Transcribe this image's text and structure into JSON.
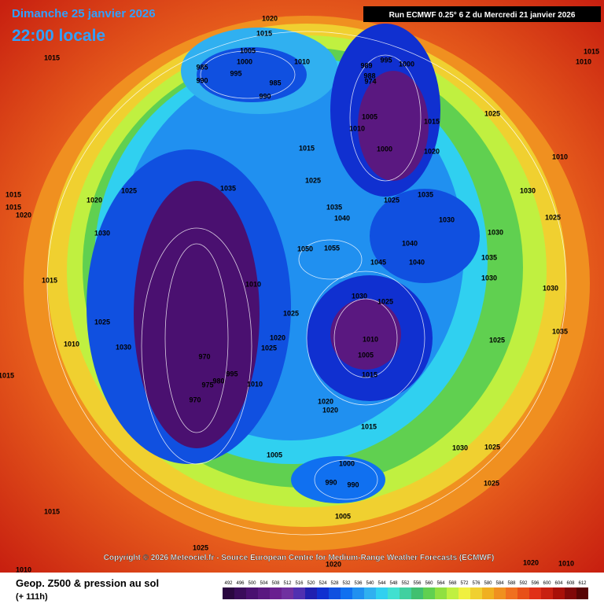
{
  "header": {
    "date": "Dimanche 25 janvier 2026",
    "time": "22:00 locale",
    "run": "Run ECMWF 0.25° 6 Z du Mercredi 21 janvier 2026"
  },
  "copyright": "Copyright © 2026 Meteociel.fr - Source European Centre for Medium-Range Weather Forecasts (ECMWF)",
  "footer": {
    "title": "Geop. Z500 & pression au sol",
    "lead": "(+ 111h)"
  },
  "scale": {
    "ticks": [
      492,
      496,
      500,
      504,
      508,
      512,
      516,
      520,
      524,
      528,
      532,
      536,
      540,
      544,
      548,
      552,
      556,
      560,
      564,
      568,
      572,
      576,
      580,
      584,
      588,
      592,
      596,
      600,
      604,
      608,
      612
    ],
    "colors": [
      "#2a0840",
      "#3a0c5a",
      "#4a1070",
      "#5a1880",
      "#6a2090",
      "#7030a0",
      "#5030b0",
      "#2020b0",
      "#1030d0",
      "#1050e0",
      "#1070f0",
      "#2090f0",
      "#30b0f0",
      "#30d0f0",
      "#40e0d0",
      "#40d0a0",
      "#40c070",
      "#60d050",
      "#90e040",
      "#c0f040",
      "#f0f040",
      "#f0d030",
      "#f0b020",
      "#f09020",
      "#f07020",
      "#e85018",
      "#e03018",
      "#c82010",
      "#a81008",
      "#800808",
      "#580404"
    ]
  },
  "isobar_labels": [
    "1020",
    "1015",
    "1015",
    "1010",
    "1005",
    "1000",
    "995",
    "985",
    "990",
    "985",
    "990",
    "989",
    "995",
    "1000",
    "988",
    "974",
    "1005",
    "1010",
    "1015",
    "1000",
    "1020",
    "1025",
    "1015",
    "1025",
    "1035",
    "1025",
    "1020",
    "1030",
    "1035",
    "1040",
    "1050",
    "1055",
    "1045",
    "1040",
    "1040",
    "1030",
    "1025",
    "1010",
    "1005",
    "1015",
    "1010",
    "1025",
    "1020",
    "1025",
    "970",
    "975",
    "980",
    "995",
    "970",
    "1010",
    "1020",
    "1020",
    "1015",
    "1005",
    "1000",
    "990",
    "990",
    "1005",
    "1025",
    "1030",
    "1025",
    "1015",
    "1025",
    "1010",
    "1020",
    "1010",
    "1020",
    "1035",
    "1025",
    "1030",
    "1030",
    "1035",
    "1030",
    "1025",
    "1015",
    "1015",
    "1030",
    "1025",
    "1010",
    "1015",
    "1010",
    "1015",
    "1010",
    "1030",
    "1025",
    "1030",
    "1035",
    "1020",
    "1015"
  ]
}
